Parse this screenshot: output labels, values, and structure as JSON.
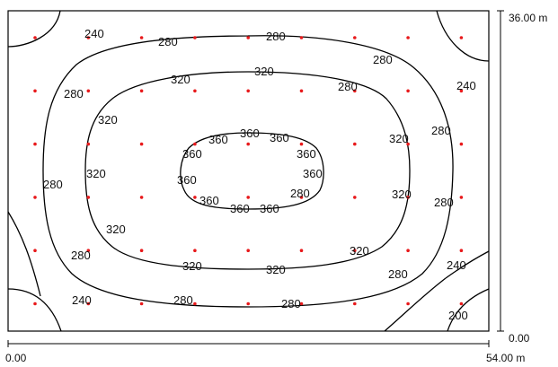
{
  "room": {
    "x_axis": {
      "min_label": "0.00",
      "max_label": "54.00 m"
    },
    "y_axis": {
      "min_label": "0.00",
      "max_label": "36.00 m"
    }
  },
  "grid_points": {
    "columns": 9,
    "rows": 6,
    "color": "#e8191b"
  },
  "contour_labels": [
    "240",
    "280",
    "280",
    "280",
    "240",
    "280",
    "320",
    "320",
    "280",
    "240",
    "320",
    "360",
    "360",
    "360",
    "320",
    "280",
    "320",
    "360",
    "360",
    "280",
    "280",
    "360",
    "360",
    "320",
    "280",
    "320",
    "360",
    "360",
    "360",
    "280",
    "280",
    "320",
    "320",
    "240",
    "240",
    "280",
    "280",
    "200"
  ]
}
